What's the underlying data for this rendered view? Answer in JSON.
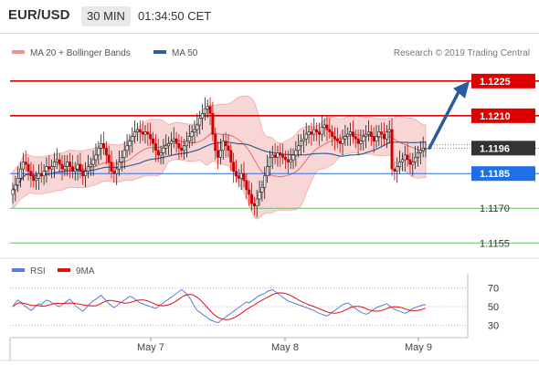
{
  "header": {
    "symbol": "EUR/USD",
    "timeframe": "30 MIN",
    "time": "01:34:50 CET"
  },
  "colors": {
    "resistance": "#dd0000",
    "support_line": "#2a6fe0",
    "support_label": "#1f6fe6",
    "current_label": "#333333",
    "target_line": "#66bb6a",
    "ma50": "#2f5e96",
    "bollinger_fill": "#f9d6d6",
    "bollinger_line": "#f0a8a8",
    "ma20": "#e46e6e",
    "candle_up": "#1a1a1a",
    "candle_down": "#cc0000",
    "arrow": "#2a5aa0",
    "rsi": "#5b7ed8",
    "ma9": "#dd1111"
  },
  "chart_data": {
    "type": "candlestick",
    "price_legend": [
      {
        "name": "MA 20 + Bollinger Bands",
        "color": "#f29090"
      },
      {
        "name": "MA 50",
        "color": "#2f5e96"
      }
    ],
    "credit": "Research © 2019 Trading Central",
    "ylim": [
      1.1148,
      1.1234
    ],
    "levels": [
      {
        "value": 1.1225,
        "label": "1.1225",
        "kind": "resistance"
      },
      {
        "value": 1.121,
        "label": "1.1210",
        "kind": "resistance"
      },
      {
        "value": 1.1196,
        "label": "1.1196",
        "kind": "current"
      },
      {
        "value": 1.1185,
        "label": "1.1185",
        "kind": "support"
      },
      {
        "value": 1.117,
        "label": "1.1170",
        "kind": "target"
      },
      {
        "value": 1.1155,
        "label": "1.1155",
        "kind": "target"
      }
    ],
    "x_ticks": [
      "May 7",
      "May 8",
      "May 9"
    ],
    "projection": {
      "from": 1.1196,
      "to": 1.1225
    },
    "candles_close": [
      1.1178,
      1.118,
      1.1183,
      1.1187,
      1.119,
      1.1189,
      1.1186,
      1.1184,
      1.1182,
      1.1183,
      1.1185,
      1.1184,
      1.1186,
      1.1188,
      1.1187,
      1.1188,
      1.119,
      1.1191,
      1.1189,
      1.1187,
      1.1188,
      1.119,
      1.1188,
      1.1186,
      1.1187,
      1.1189,
      1.1186,
      1.1184,
      1.1186,
      1.1188,
      1.1189,
      1.1191,
      1.1193,
      1.1196,
      1.1198,
      1.1196,
      1.1193,
      1.119,
      1.1186,
      1.1185,
      1.1187,
      1.119,
      1.1192,
      1.1195,
      1.1197,
      1.1199,
      1.1201,
      1.1203,
      1.1204,
      1.1203,
      1.1202,
      1.1203,
      1.1202,
      1.12,
      1.1198,
      1.1195,
      1.1193,
      1.1194,
      1.1196,
      1.1197,
      1.1198,
      1.1199,
      1.12,
      1.1198,
      1.1196,
      1.1195,
      1.1197,
      1.1199,
      1.1201,
      1.1203,
      1.1204,
      1.1206,
      1.1209,
      1.1211,
      1.1213,
      1.1214,
      1.1211,
      1.1202,
      1.1195,
      1.1192,
      1.1195,
      1.1199,
      1.1197,
      1.1195,
      1.119,
      1.1186,
      1.1184,
      1.1183,
      1.1185,
      1.1182,
      1.1178,
      1.1176,
      1.1172,
      1.1171,
      1.1174,
      1.1177,
      1.1179,
      1.1184,
      1.1188,
      1.1192,
      1.1193,
      1.1192,
      1.1194,
      1.1193,
      1.1192,
      1.1191,
      1.119,
      1.1191,
      1.1193,
      1.1195,
      1.1197,
      1.1199,
      1.12,
      1.1202,
      1.1203,
      1.1202,
      1.1204,
      1.1203,
      1.1202,
      1.1205,
      1.1206,
      1.1204,
      1.1203,
      1.1201,
      1.12,
      1.1199,
      1.1198,
      1.12,
      1.1201,
      1.1202,
      1.1203,
      1.1201,
      1.12,
      1.1198,
      1.1199,
      1.1201,
      1.1202,
      1.1203,
      1.1201,
      1.1199,
      1.1201,
      1.1203,
      1.1202,
      1.12,
      1.1203,
      1.1204,
      1.1187,
      1.1186,
      1.1188,
      1.119,
      1.1191,
      1.1193,
      1.1191,
      1.1189,
      1.119,
      1.1192,
      1.1194,
      1.1195,
      1.1196,
      1.1196
    ],
    "rsi": {
      "legend": [
        {
          "name": "RSI",
          "color": "#5b7ed8"
        },
        {
          "name": "9MA",
          "color": "#dd1111"
        }
      ],
      "ticks": [
        70,
        50,
        30
      ],
      "ylim": [
        22,
        80
      ],
      "values": [
        50,
        54,
        57,
        55,
        52,
        50,
        48,
        46,
        48,
        51,
        53,
        52,
        55,
        57,
        56,
        54,
        53,
        51,
        50,
        52,
        54,
        56,
        58,
        55,
        51,
        49,
        47,
        45,
        48,
        51,
        54,
        56,
        58,
        60,
        62,
        59,
        56,
        53,
        51,
        49,
        51,
        53,
        55,
        57,
        59,
        61,
        60,
        58,
        56,
        54,
        53,
        52,
        51,
        50,
        49,
        48,
        50,
        52,
        54,
        56,
        58,
        60,
        62,
        64,
        66,
        68,
        66,
        63,
        60,
        55,
        50,
        46,
        44,
        42,
        40,
        38,
        36,
        35,
        34,
        33,
        35,
        37,
        39,
        41,
        43,
        45,
        47,
        49,
        51,
        53,
        55,
        54,
        56,
        58,
        60,
        62,
        63,
        64,
        66,
        67,
        68,
        66,
        64,
        62,
        60,
        58,
        56,
        55,
        54,
        53,
        52,
        51,
        50,
        49,
        48,
        47,
        46,
        44,
        43,
        42,
        41,
        40,
        42,
        44,
        46,
        48,
        50,
        52,
        53,
        54,
        52,
        50,
        48,
        46,
        44,
        43,
        42,
        43,
        45,
        47,
        49,
        50,
        51,
        52,
        53,
        51,
        49,
        47,
        46,
        45,
        44,
        43,
        44,
        46,
        48,
        49,
        50,
        51,
        52,
        52
      ]
    }
  }
}
